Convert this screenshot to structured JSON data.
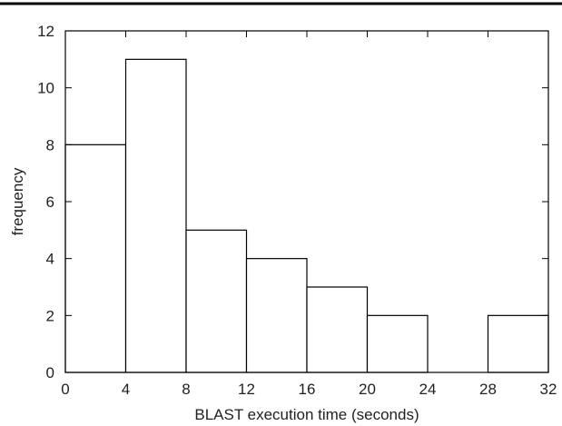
{
  "chart_data": {
    "type": "bar",
    "subtype": "histogram",
    "title": "",
    "xlabel": "BLAST execution time (seconds)",
    "ylabel": "frequency",
    "xlim": [
      0,
      32
    ],
    "ylim": [
      0,
      12
    ],
    "x_ticks": [
      "0",
      "4",
      "8",
      "12",
      "16",
      "20",
      "24",
      "28",
      "32"
    ],
    "y_ticks": [
      "0",
      "2",
      "4",
      "6",
      "8",
      "10",
      "12"
    ],
    "bins": [
      {
        "x0": 0,
        "x1": 4,
        "value": 8
      },
      {
        "x0": 4,
        "x1": 8,
        "value": 11
      },
      {
        "x0": 8,
        "x1": 12,
        "value": 5
      },
      {
        "x0": 12,
        "x1": 16,
        "value": 4
      },
      {
        "x0": 16,
        "x1": 20,
        "value": 3
      },
      {
        "x0": 20,
        "x1": 24,
        "value": 2
      },
      {
        "x0": 24,
        "x1": 28,
        "value": 0
      },
      {
        "x0": 28,
        "x1": 32,
        "value": 2
      }
    ],
    "grid": false,
    "legend": "none",
    "colors": {
      "bar_fill": "#ffffff",
      "bar_stroke": "#000000",
      "axis": "#000000"
    }
  }
}
